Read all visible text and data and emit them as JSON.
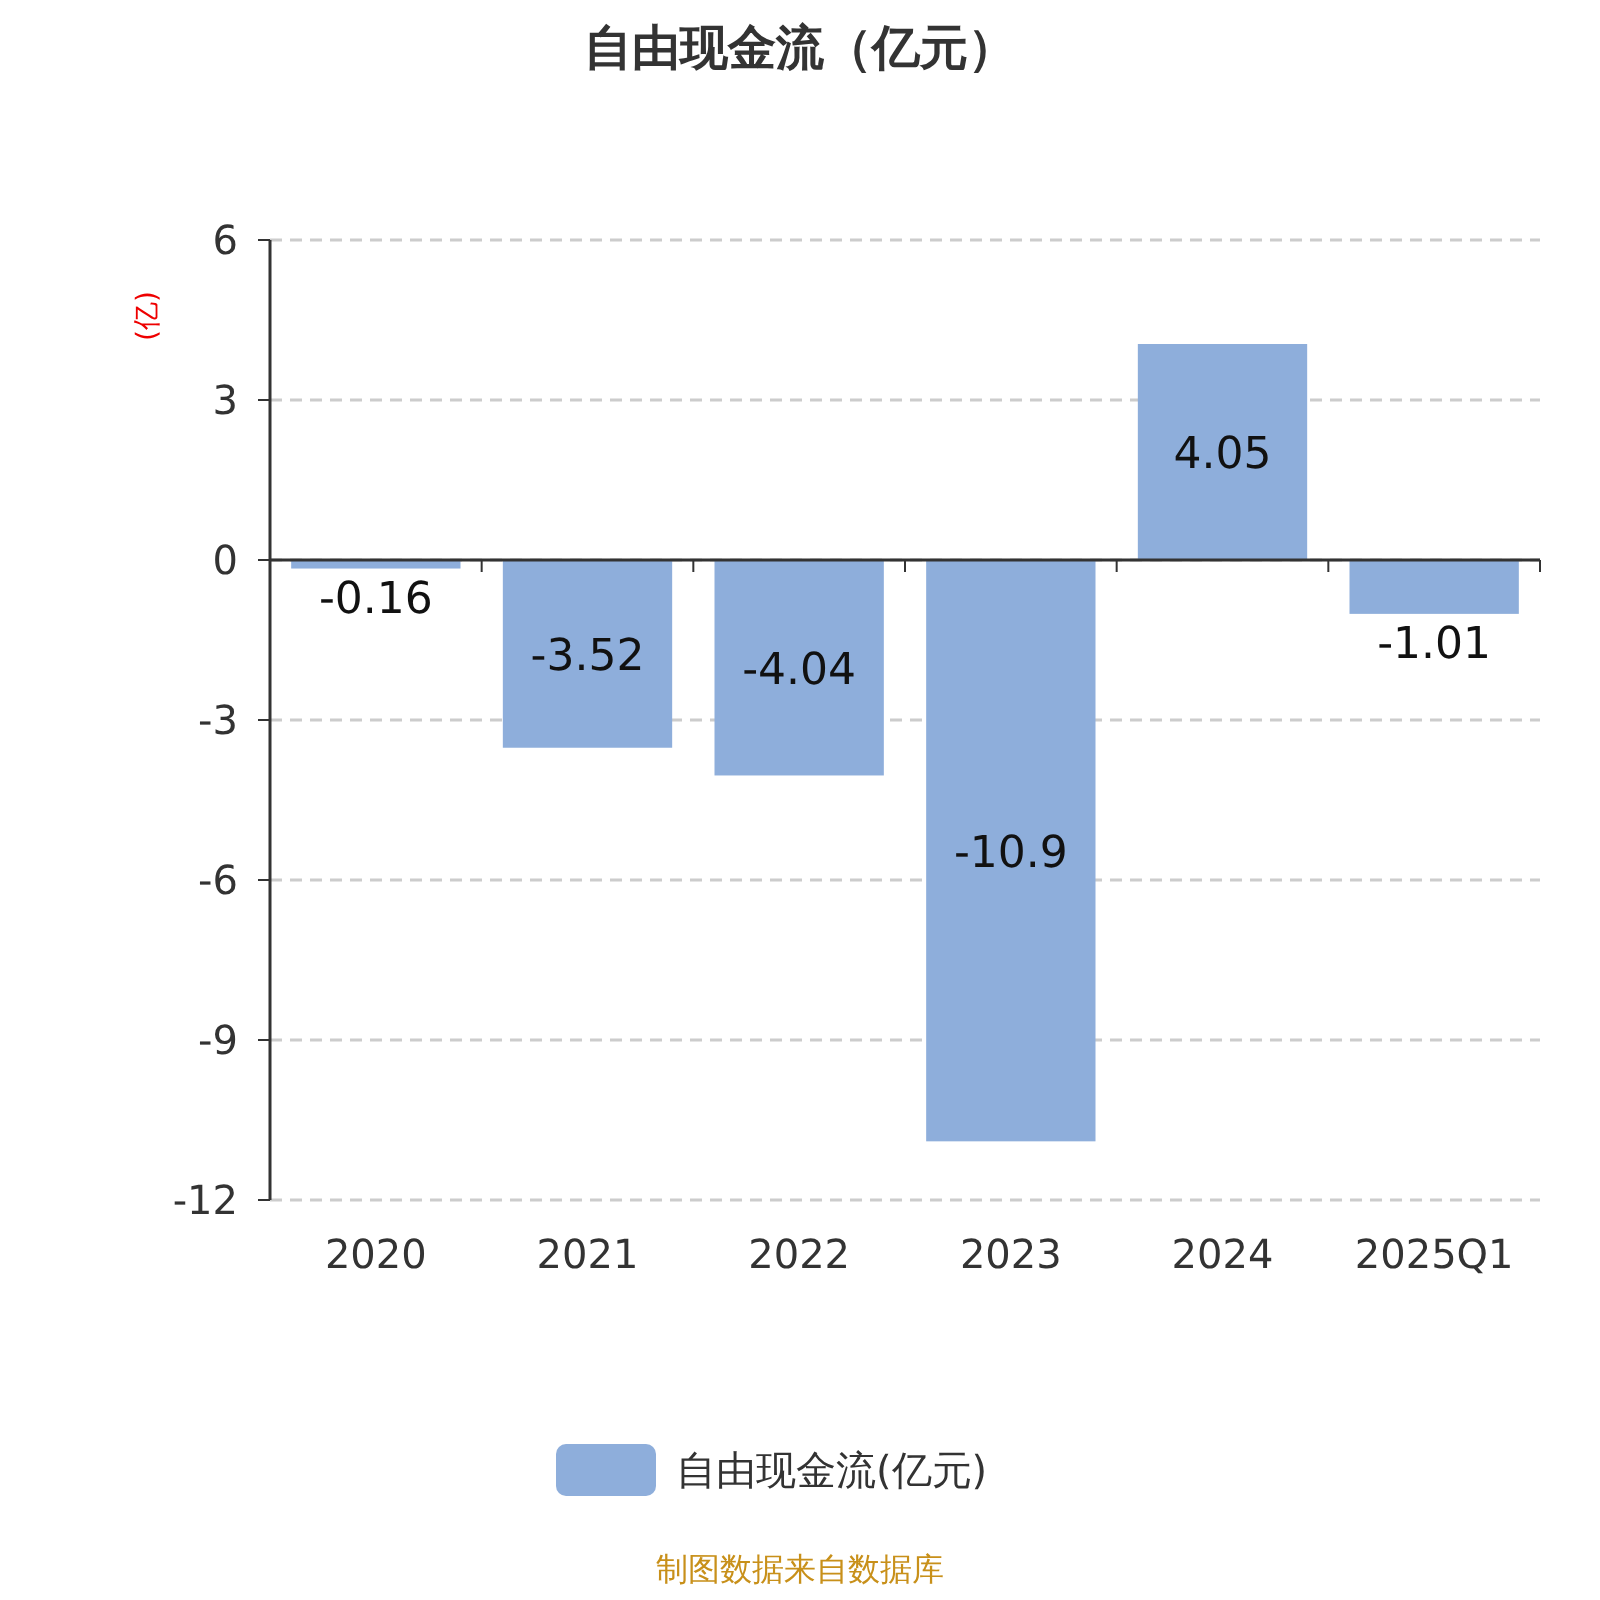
{
  "chart_data": {
    "type": "bar",
    "title": "自由现金流（亿元）",
    "ylabel": "(亿)",
    "categories": [
      "2020",
      "2021",
      "2022",
      "2023",
      "2024",
      "2025Q1"
    ],
    "series": [
      {
        "name": "自由现金流(亿元)",
        "color": "#8eaedb",
        "values": [
          -0.16,
          -3.52,
          -4.04,
          -10.9,
          4.05,
          -1.01
        ]
      }
    ],
    "ylim": [
      -12,
      6
    ],
    "yticks": [
      -12,
      -9,
      -6,
      -3,
      0,
      3,
      6
    ],
    "grid": "y",
    "data_labels": true,
    "legend": "bottom",
    "annotations": [
      "制图数据来自数据库"
    ]
  }
}
